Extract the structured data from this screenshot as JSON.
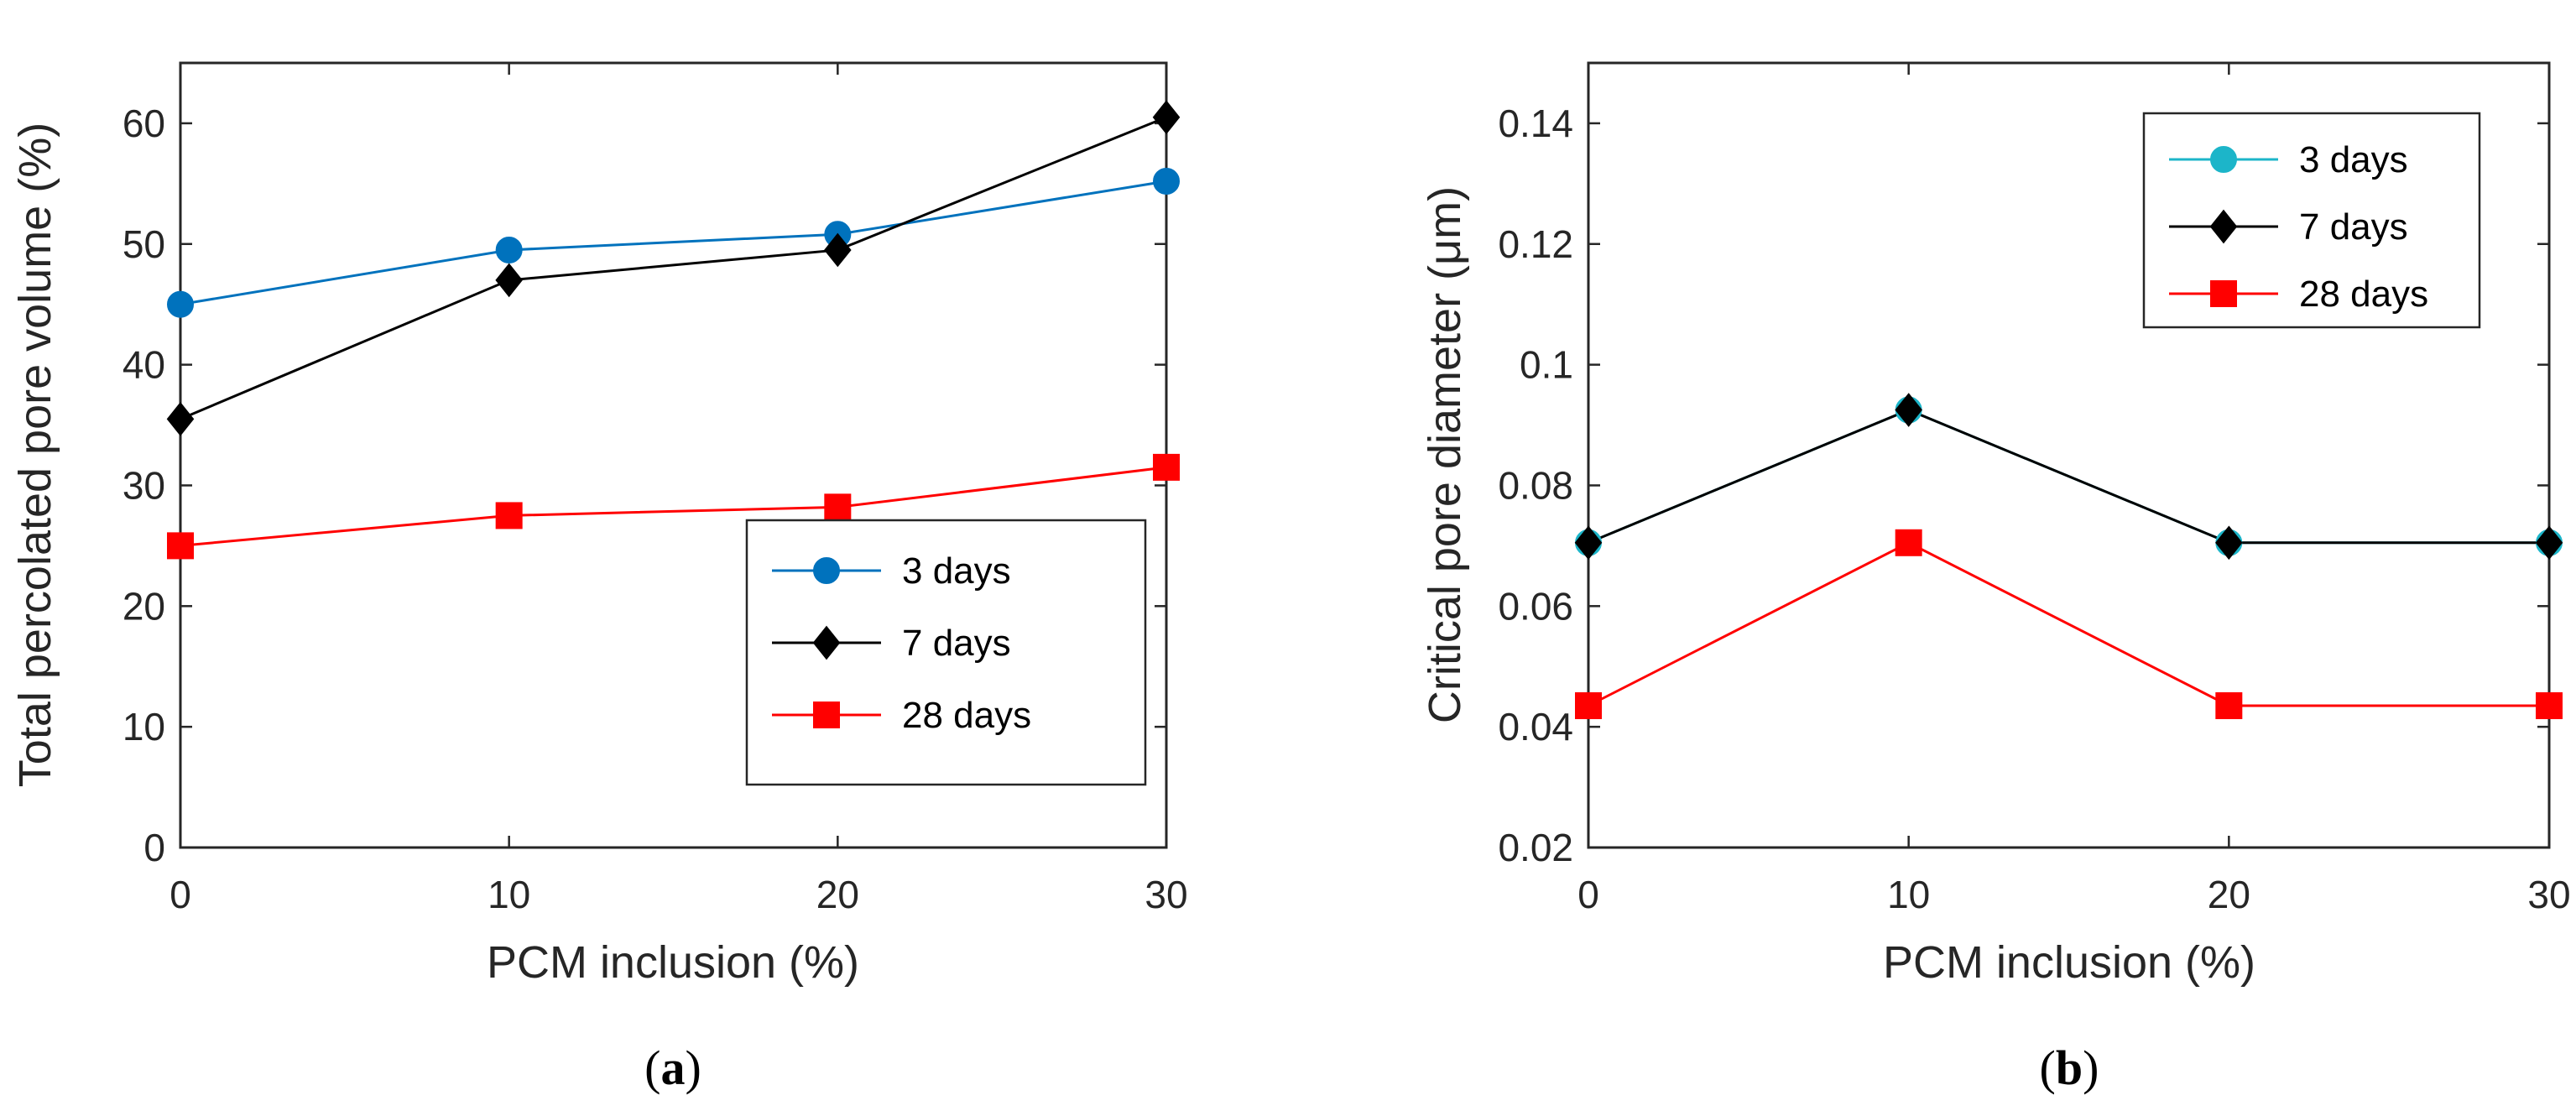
{
  "chart_data": [
    {
      "type": "line",
      "caption": "(a)",
      "xlabel": "PCM inclusion (%)",
      "ylabel": "Total percolated pore volume (%)",
      "x": [
        0,
        10,
        20,
        30
      ],
      "xlim": [
        0,
        30
      ],
      "ylim": [
        0,
        65
      ],
      "xticks": [
        0,
        10,
        20,
        30
      ],
      "yticks": [
        0,
        10,
        20,
        30,
        40,
        50,
        60
      ],
      "xtick_labels": [
        "0",
        "10",
        "20",
        "30"
      ],
      "ytick_labels": [
        "0",
        "10",
        "20",
        "30",
        "40",
        "50",
        "60"
      ],
      "grid": false,
      "legend_position": "lower-right",
      "series": [
        {
          "name": "3 days",
          "values": [
            45,
            49.5,
            50.8,
            55.2
          ],
          "color": "#0072BD",
          "marker": "circle"
        },
        {
          "name": "7 days",
          "values": [
            35.5,
            47,
            49.5,
            60.5
          ],
          "color": "#000000",
          "marker": "diamond"
        },
        {
          "name": "28 days",
          "values": [
            25,
            27.5,
            28.2,
            31.5
          ],
          "color": "#FF0000",
          "marker": "square"
        }
      ]
    },
    {
      "type": "line",
      "caption": "(b)",
      "xlabel": "PCM inclusion (%)",
      "ylabel": "Critical pore diameter (μm)",
      "x": [
        0,
        10,
        20,
        30
      ],
      "xlim": [
        0,
        30
      ],
      "ylim": [
        0.02,
        0.15
      ],
      "xticks": [
        0,
        10,
        20,
        30
      ],
      "yticks": [
        0.02,
        0.04,
        0.06,
        0.08,
        0.1,
        0.12,
        0.14
      ],
      "xtick_labels": [
        "0",
        "10",
        "20",
        "30"
      ],
      "ytick_labels": [
        "0.02",
        "0.04",
        "0.06",
        "0.08",
        "0.1",
        "0.12",
        "0.14"
      ],
      "grid": false,
      "legend_position": "top-right",
      "series": [
        {
          "name": "3 days",
          "values": [
            0.0705,
            0.0925,
            0.0705,
            0.0705
          ],
          "color": "#1CB5C9",
          "marker": "circle"
        },
        {
          "name": "7 days",
          "values": [
            0.0705,
            0.0925,
            0.0705,
            0.0705
          ],
          "color": "#000000",
          "marker": "diamond"
        },
        {
          "name": "28 days",
          "values": [
            0.0435,
            0.0705,
            0.0435,
            0.0435
          ],
          "color": "#FF0000",
          "marker": "square"
        }
      ]
    }
  ]
}
